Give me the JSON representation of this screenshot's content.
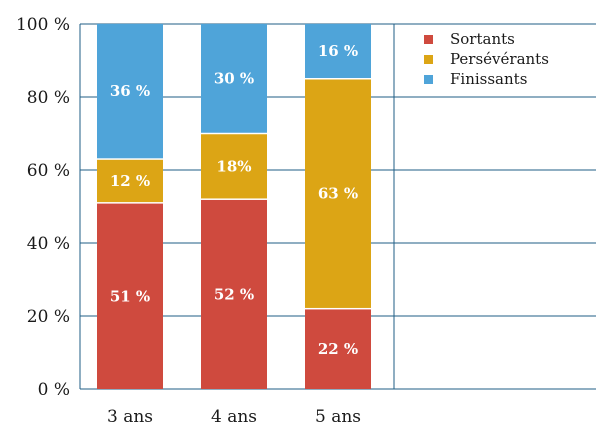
{
  "chart_data": {
    "type": "bar",
    "stacked": true,
    "normalized_percent": true,
    "categories": [
      "3 ans",
      "4 ans",
      "5 ans"
    ],
    "series": [
      {
        "name": "Sortants",
        "color": "#cf4a3e",
        "values": [
          51,
          52,
          22
        ],
        "labels": [
          "51 %",
          "52 %",
          "22 %"
        ]
      },
      {
        "name": "Persévérants",
        "color": "#dca515",
        "values": [
          12,
          18,
          63
        ],
        "labels": [
          "12 %",
          "18%",
          "63 %"
        ]
      },
      {
        "name": "Finissants",
        "color": "#4fa4d9",
        "values": [
          36,
          30,
          16
        ],
        "labels": [
          "36 %",
          "30 %",
          "16 %"
        ]
      }
    ],
    "ylim": [
      0,
      100
    ],
    "yticks": [
      0,
      20,
      40,
      60,
      80,
      100
    ],
    "ytick_labels": [
      "0 %",
      "20 %",
      "40 %",
      "60 %",
      "80 %",
      "100 %"
    ],
    "grid": true,
    "grid_color": "#1f5e86",
    "legend_position": "top-right",
    "xlabel": "",
    "ylabel": "",
    "title": ""
  }
}
